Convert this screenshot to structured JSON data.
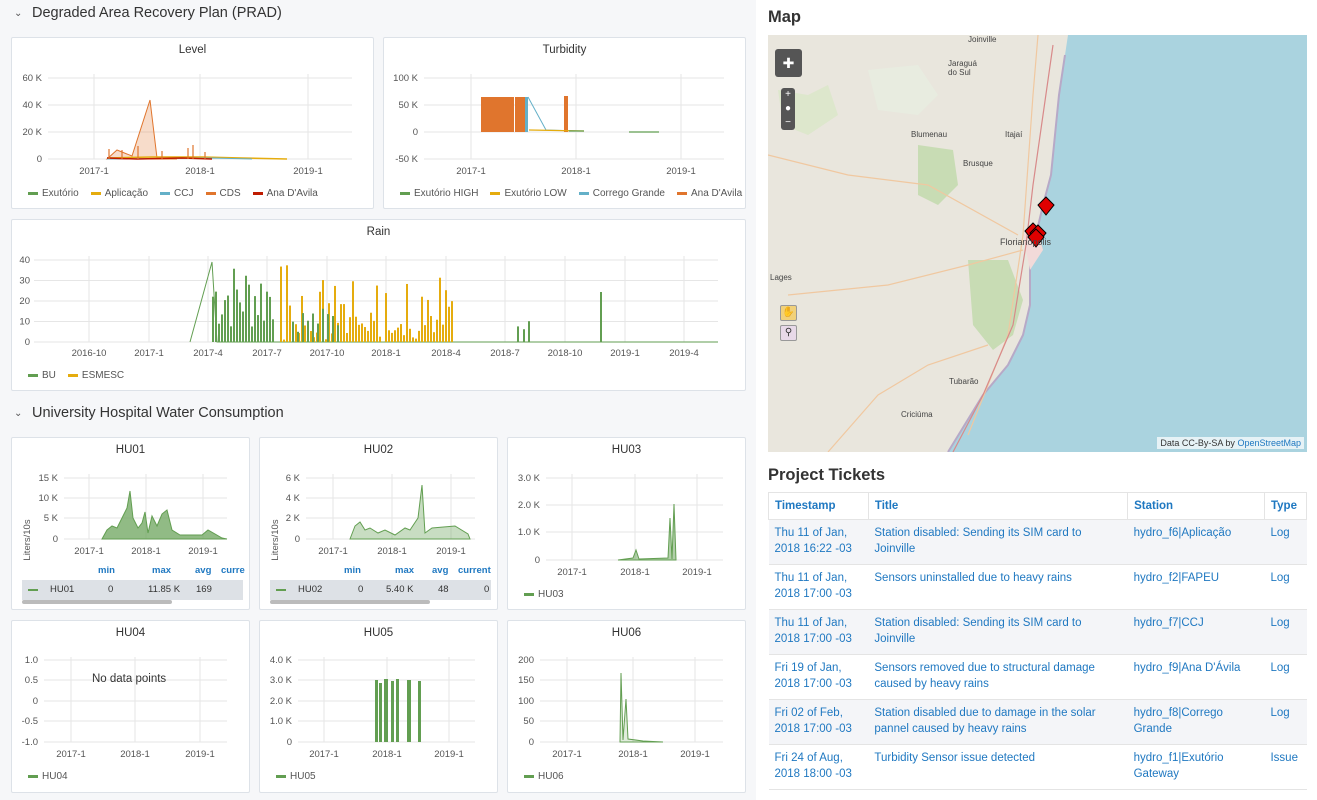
{
  "sections": {
    "prad_title": "Degraded Area Recovery Plan (PRAD)",
    "hospital_title": "University Hospital Water Consumption"
  },
  "colors": {
    "green": "#629e51",
    "yellow": "#e5ac0e",
    "cyan": "#64b0c8",
    "orange": "#e0752d",
    "red": "#bf1b00",
    "link": "#1f78c1"
  },
  "panels": {
    "level": {
      "title": "Level",
      "yticks": [
        "60 K",
        "40 K",
        "20 K",
        "0"
      ],
      "xticks": [
        "2017-1",
        "2018-1",
        "2019-1"
      ],
      "legend": [
        {
          "name": "Exutório",
          "color": "#629e51"
        },
        {
          "name": "Aplicação",
          "color": "#e5ac0e"
        },
        {
          "name": "CCJ",
          "color": "#64b0c8"
        },
        {
          "name": "CDS",
          "color": "#e0752d"
        },
        {
          "name": "Ana D'Avila",
          "color": "#bf1b00"
        }
      ]
    },
    "turbidity": {
      "title": "Turbidity",
      "yticks": [
        "100 K",
        "50 K",
        "0",
        "-50 K"
      ],
      "xticks": [
        "2017-1",
        "2018-1",
        "2019-1"
      ],
      "legend": [
        {
          "name": "Exutório HIGH",
          "color": "#629e51"
        },
        {
          "name": "Exutório LOW",
          "color": "#e5ac0e"
        },
        {
          "name": "Corrego Grande",
          "color": "#64b0c8"
        },
        {
          "name": "Ana D'Avila",
          "color": "#e0752d"
        }
      ]
    },
    "rain": {
      "title": "Rain",
      "yticks": [
        "40",
        "30",
        "20",
        "10",
        "0"
      ],
      "xticks": [
        "2016-10",
        "2017-1",
        "2017-4",
        "2017-7",
        "2017-10",
        "2018-1",
        "2018-4",
        "2018-7",
        "2018-10",
        "2019-1",
        "2019-4"
      ],
      "legend": [
        {
          "name": "BU",
          "color": "#629e51"
        },
        {
          "name": "ESMESC",
          "color": "#e5ac0e"
        }
      ]
    },
    "hu01": {
      "title": "HU01",
      "ylabel": "Liters/10s",
      "yticks": [
        "15 K",
        "10 K",
        "5 K",
        "0"
      ],
      "xticks": [
        "2017-1",
        "2018-1",
        "2019-1"
      ],
      "stats_headers": [
        "min",
        "max",
        "avg",
        "curre"
      ],
      "stats_row": {
        "name": "HU01",
        "min": "0",
        "max": "11.85 K",
        "avg": "169"
      }
    },
    "hu02": {
      "title": "HU02",
      "ylabel": "Liters/10s",
      "yticks": [
        "6 K",
        "4 K",
        "2 K",
        "0"
      ],
      "xticks": [
        "2017-1",
        "2018-1",
        "2019-1"
      ],
      "stats_headers": [
        "min",
        "max",
        "avg",
        "current"
      ],
      "stats_row": {
        "name": "HU02",
        "min": "0",
        "max": "5.40 K",
        "avg": "48",
        "current": "0"
      }
    },
    "hu03": {
      "title": "HU03",
      "yticks": [
        "3.0 K",
        "2.0 K",
        "1.0 K",
        "0"
      ],
      "xticks": [
        "2017-1",
        "2018-1",
        "2019-1"
      ],
      "legend": [
        {
          "name": "HU03",
          "color": "#629e51"
        }
      ]
    },
    "hu04": {
      "title": "HU04",
      "yticks": [
        "1.0",
        "0.5",
        "0",
        "-0.5",
        "-1.0"
      ],
      "xticks": [
        "2017-1",
        "2018-1",
        "2019-1"
      ],
      "nodata": "No data points",
      "legend": [
        {
          "name": "HU04",
          "color": "#629e51"
        }
      ]
    },
    "hu05": {
      "title": "HU05",
      "yticks": [
        "4.0 K",
        "3.0 K",
        "2.0 K",
        "1.0 K",
        "0"
      ],
      "xticks": [
        "2017-1",
        "2018-1",
        "2019-1"
      ],
      "legend": [
        {
          "name": "HU05",
          "color": "#629e51"
        }
      ]
    },
    "hu06": {
      "title": "HU06",
      "yticks": [
        "200",
        "150",
        "100",
        "50",
        "0"
      ],
      "xticks": [
        "2017-1",
        "2018-1",
        "2019-1"
      ],
      "legend": [
        {
          "name": "HU06",
          "color": "#629e51"
        }
      ]
    }
  },
  "map": {
    "title": "Map",
    "attribution_text": "Data CC-By-SA by",
    "attribution_link": "OpenStreetMap",
    "places": [
      "Joinville",
      "Jaraguá do Sul",
      "Blumenau",
      "Itajaí",
      "Brusque",
      "Florianópolis",
      "Lages",
      "Tubarão",
      "Criciúma"
    ]
  },
  "tickets": {
    "title": "Project Tickets",
    "headers": [
      "Timestamp",
      "Title",
      "Station",
      "Type"
    ],
    "rows": [
      {
        "timestamp": "Thu 11 of Jan, 2018 16:22 -03",
        "title": "Station disabled: Sending its SIM card to Joinville",
        "station": "hydro_f6|Aplicação",
        "type": "Log"
      },
      {
        "timestamp": "Thu 11 of Jan, 2018 17:00 -03",
        "title": "Sensors uninstalled due to heavy rains",
        "station": "hydro_f2|FAPEU",
        "type": "Log"
      },
      {
        "timestamp": "Thu 11 of Jan, 2018 17:00 -03",
        "title": "Station disabled: Sending its SIM card to Joinville",
        "station": "hydro_f7|CCJ",
        "type": "Log"
      },
      {
        "timestamp": "Fri 19 of Jan, 2018 17:00 -03",
        "title": "Sensors removed due to structural damage caused by heavy rains",
        "station": "hydro_f9|Ana D'Ávila",
        "type": "Log"
      },
      {
        "timestamp": "Fri 02 of Feb, 2018 17:00 -03",
        "title": "Station disabled due to damage in the solar pannel caused by heavy rains",
        "station": "hydro_f8|Corrego Grande",
        "type": "Log"
      },
      {
        "timestamp": "Fri 24 of Aug, 2018 18:00 -03",
        "title": "Turbidity Sensor issue detected",
        "station": "hydro_f1|Exutório Gateway",
        "type": "Issue"
      }
    ]
  }
}
